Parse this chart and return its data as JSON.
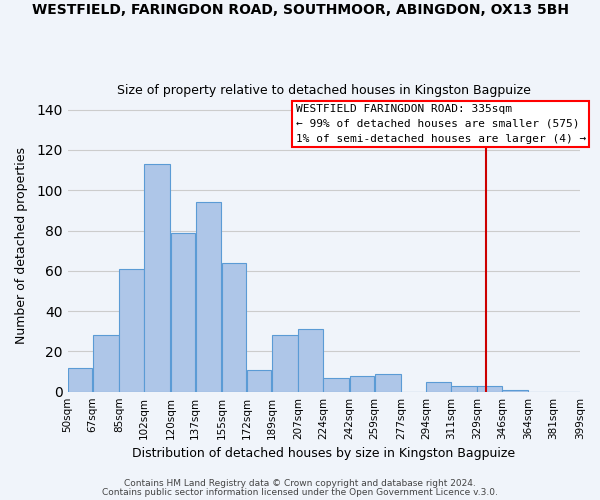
{
  "title": "WESTFIELD, FARINGDON ROAD, SOUTHMOOR, ABINGDON, OX13 5BH",
  "subtitle": "Size of property relative to detached houses in Kingston Bagpuize",
  "xlabel": "Distribution of detached houses by size in Kingston Bagpuize",
  "ylabel": "Number of detached properties",
  "bar_edges": [
    50,
    67,
    85,
    102,
    120,
    137,
    155,
    172,
    189,
    207,
    224,
    242,
    259,
    277,
    294,
    311,
    329,
    346,
    364,
    381,
    399
  ],
  "bar_heights": [
    12,
    28,
    61,
    113,
    79,
    94,
    64,
    11,
    28,
    31,
    7,
    8,
    9,
    0,
    5,
    3,
    3,
    1,
    0,
    0
  ],
  "bar_color": "#aec6e8",
  "bar_edgecolor": "#5b9bd5",
  "tick_labels": [
    "50sqm",
    "67sqm",
    "85sqm",
    "102sqm",
    "120sqm",
    "137sqm",
    "155sqm",
    "172sqm",
    "189sqm",
    "207sqm",
    "224sqm",
    "242sqm",
    "259sqm",
    "277sqm",
    "294sqm",
    "311sqm",
    "329sqm",
    "346sqm",
    "364sqm",
    "381sqm",
    "399sqm"
  ],
  "vline_x": 335,
  "vline_color": "#cc0000",
  "ylim": [
    0,
    145
  ],
  "yticks": [
    0,
    20,
    40,
    60,
    80,
    100,
    120,
    140
  ],
  "legend_title": "WESTFIELD FARINGDON ROAD: 335sqm",
  "legend_line1": "← 99% of detached houses are smaller (575)",
  "legend_line2": "1% of semi-detached houses are larger (4) →",
  "footnote1": "Contains HM Land Registry data © Crown copyright and database right 2024.",
  "footnote2": "Contains public sector information licensed under the Open Government Licence v.3.0.",
  "background_color": "#f0f4fa",
  "grid_color": "#cccccc"
}
